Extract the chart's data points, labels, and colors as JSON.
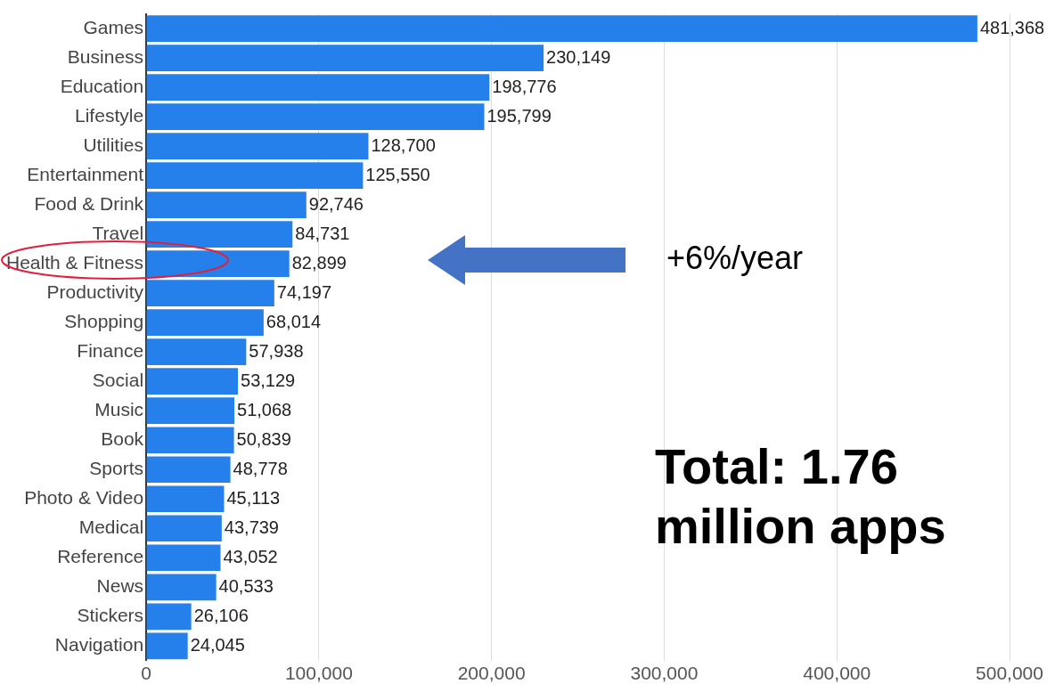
{
  "chart_data": {
    "type": "bar",
    "orientation": "horizontal",
    "categories": [
      "Games",
      "Business",
      "Education",
      "Lifestyle",
      "Utilities",
      "Entertainment",
      "Food & Drink",
      "Travel",
      "Health & Fitness",
      "Productivity",
      "Shopping",
      "Finance",
      "Social",
      "Music",
      "Book",
      "Sports",
      "Photo & Video",
      "Medical",
      "Reference",
      "News",
      "Stickers",
      "Navigation"
    ],
    "values": [
      481368,
      230149,
      198776,
      195799,
      128700,
      125550,
      92746,
      84731,
      82899,
      74197,
      68014,
      57938,
      53129,
      51068,
      50839,
      48778,
      45113,
      43739,
      43052,
      40533,
      26106,
      24045
    ],
    "color": "#2680eb",
    "value_labels": [
      "481,368",
      "230,149",
      "198,776",
      "195,799",
      "128,700",
      "125,550",
      "92,746",
      "84,731",
      "82,899",
      "74,197",
      "68,014",
      "57,938",
      "53,129",
      "51,068",
      "50,839",
      "48,778",
      "45,113",
      "43,739",
      "43,052",
      "40,533",
      "26,106",
      "24,045"
    ],
    "xlim": [
      0,
      500000
    ],
    "xticks": [
      0,
      {
        "value": 100000,
        "label": "100,000"
      },
      {
        "value": 200000,
        "label": "200,000"
      },
      {
        "value": 300000,
        "label": "300,000"
      },
      {
        "value": 400000,
        "label": "400,000"
      },
      {
        "value": 500000,
        "label": "500,000"
      }
    ],
    "grid": "x",
    "legend": false,
    "annotations": [
      "+6%/year",
      "Total: 1.76 million apps"
    ]
  }
}
